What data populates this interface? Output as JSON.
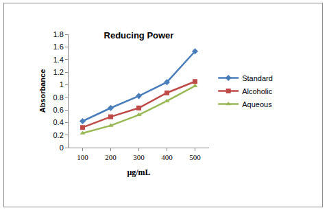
{
  "chart_data": {
    "type": "line",
    "title": "Reducing Power",
    "x_label": "µg/mL",
    "y_label": "Absorbance",
    "categories": [
      "100",
      "200",
      "300",
      "400",
      "500"
    ],
    "series": [
      {
        "name": "Standard",
        "color": "#4a7ebb",
        "marker": "diamond",
        "values": [
          0.42,
          0.63,
          0.82,
          1.04,
          1.53
        ]
      },
      {
        "name": "Alcoholic",
        "color": "#be4b48",
        "marker": "square",
        "values": [
          0.32,
          0.49,
          0.63,
          0.87,
          1.05
        ]
      },
      {
        "name": "Aqueous",
        "color": "#98b954",
        "marker": "triangle-up",
        "values": [
          0.23,
          0.35,
          0.52,
          0.74,
          0.98
        ]
      }
    ],
    "ylim": [
      0,
      1.8
    ],
    "yticks": [
      0,
      0.2,
      0.4,
      0.6,
      0.8,
      1,
      1.2,
      1.4,
      1.6,
      1.8
    ],
    "grid": false,
    "legend": "right"
  }
}
